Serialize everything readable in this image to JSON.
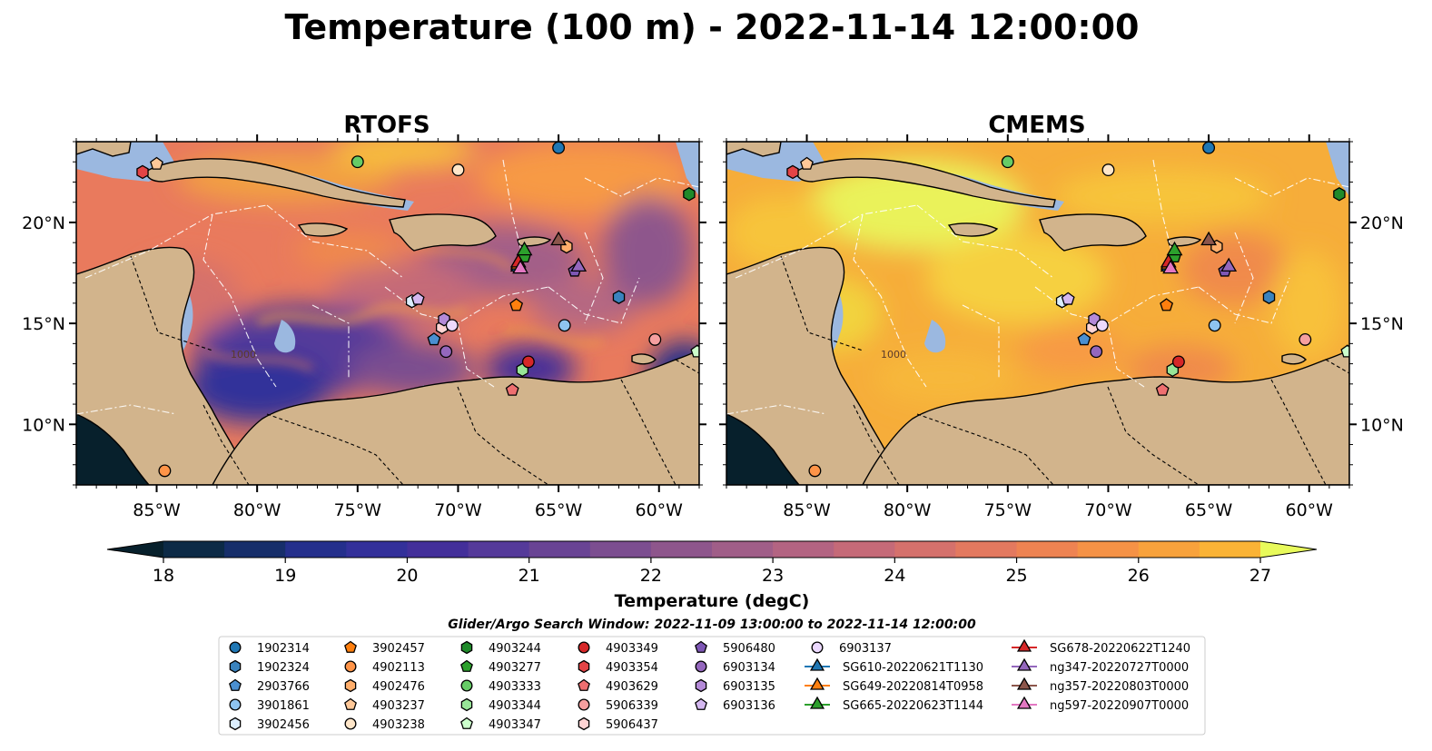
{
  "figure": {
    "title": "Temperature (100 m) - 2022-11-14 12:00:00",
    "search_window": "Glider/Argo Search Window: 2022-11-09 13:00:00 to 2022-11-14 12:00:00"
  },
  "panels": [
    {
      "name": "rtofs",
      "title": "RTOFS"
    },
    {
      "name": "cmems",
      "title": "CMEMS"
    }
  ],
  "axes": {
    "lon_ticks": [
      "85°W",
      "80°W",
      "75°W",
      "70°W",
      "65°W",
      "60°W"
    ],
    "lat_ticks": [
      "20°N",
      "15°N",
      "10°N"
    ],
    "lon_values": [
      -85,
      -80,
      -75,
      -70,
      -65,
      -60
    ],
    "lat_values": [
      20,
      15,
      10
    ],
    "lon_range": [
      -89,
      -58
    ],
    "lat_range": [
      7,
      24
    ],
    "contour_label": "1000"
  },
  "colorbar": {
    "label": "Temperature (degC)",
    "ticks": [
      "18",
      "19",
      "20",
      "21",
      "22",
      "23",
      "24",
      "25",
      "26",
      "27"
    ],
    "range": [
      18,
      27
    ],
    "step": 0.5,
    "extend": "both",
    "colors": [
      "#07202c",
      "#0c2a46",
      "#162e6a",
      "#242f8c",
      "#33309a",
      "#432f9a",
      "#553a9a",
      "#694494",
      "#7c4e90",
      "#8e568c",
      "#a05e88",
      "#b36482",
      "#c56a78",
      "#d5716c",
      "#e3795f",
      "#ee8352",
      "#f59246",
      "#f8a23c",
      "#fab336",
      "#f9c439",
      "#f3d63e",
      "#e8fa5b"
    ]
  },
  "markers": [
    {
      "id": "1902314",
      "shape": "circle",
      "color": "#1f77b4",
      "lon": -65.0,
      "lat": 23.7
    },
    {
      "id": "1902324",
      "shape": "hexagon",
      "color": "#3a83be",
      "lon": -62.0,
      "lat": 16.3
    },
    {
      "id": "2903766",
      "shape": "pentagon",
      "color": "#4a8fd0",
      "lon": -71.2,
      "lat": 14.2
    },
    {
      "id": "3901861",
      "shape": "circle",
      "color": "#8ec3f0",
      "lon": -64.7,
      "lat": 14.9
    },
    {
      "id": "3902456",
      "shape": "hexagon",
      "color": "#dbeeff",
      "lon": -72.3,
      "lat": 16.1
    },
    {
      "id": "3902457",
      "shape": "pentagon",
      "color": "#ff7f0e",
      "lon": -67.1,
      "lat": 15.9
    },
    {
      "id": "4902113",
      "shape": "circle",
      "color": "#ff9448",
      "lon": -84.6,
      "lat": 7.7
    },
    {
      "id": "4902476",
      "shape": "hexagon",
      "color": "#ffae6b",
      "lon": -64.6,
      "lat": 18.8
    },
    {
      "id": "4903237",
      "shape": "pentagon",
      "color": "#ffc898",
      "lon": -85.0,
      "lat": 22.9
    },
    {
      "id": "4903238",
      "shape": "circle",
      "color": "#ffe6c9",
      "lon": -70.0,
      "lat": 22.6
    },
    {
      "id": "4903244",
      "shape": "hexagon",
      "color": "#1f8a2a",
      "lon": -58.5,
      "lat": 21.4
    },
    {
      "id": "4903277",
      "shape": "pentagon",
      "color": "#2ca02c",
      "lon": -66.7,
      "lat": 18.3
    },
    {
      "id": "4903333",
      "shape": "circle",
      "color": "#66cc66",
      "lon": -75.0,
      "lat": 23.0
    },
    {
      "id": "4903344",
      "shape": "hexagon",
      "color": "#98e598",
      "lon": -66.8,
      "lat": 12.7
    },
    {
      "id": "4903347",
      "shape": "pentagon",
      "color": "#ccffcc",
      "lon": -58.1,
      "lat": 13.6
    },
    {
      "id": "4903349",
      "shape": "circle",
      "color": "#d62728",
      "lon": -66.5,
      "lat": 13.1
    },
    {
      "id": "4903354",
      "shape": "hexagon",
      "color": "#e34446",
      "lon": -85.7,
      "lat": 22.5
    },
    {
      "id": "4903629",
      "shape": "pentagon",
      "color": "#ee6f70",
      "lon": -67.3,
      "lat": 11.7
    },
    {
      "id": "5906339",
      "shape": "circle",
      "color": "#f59f9f",
      "lon": -60.2,
      "lat": 14.2
    },
    {
      "id": "5906437",
      "shape": "hexagon",
      "color": "#ffd4d4",
      "lon": -70.8,
      "lat": 14.8
    },
    {
      "id": "5906480",
      "shape": "pentagon",
      "color": "#7e57b5",
      "lon": -64.2,
      "lat": 17.6
    },
    {
      "id": "6903134",
      "shape": "circle",
      "color": "#9467bd",
      "lon": -70.6,
      "lat": 13.6
    },
    {
      "id": "6903135",
      "shape": "hexagon",
      "color": "#b48ad8",
      "lon": -70.7,
      "lat": 15.2
    },
    {
      "id": "6903136",
      "shape": "pentagon",
      "color": "#d4b8f0",
      "lon": -72.0,
      "lat": 16.2
    },
    {
      "id": "6903137",
      "shape": "circle",
      "color": "#ecd9ff",
      "lon": -70.3,
      "lat": 14.9
    },
    {
      "id": "SG610-20220621T1130",
      "shape": "triangle",
      "color": "#1f77b4",
      "lon": -67.0,
      "lat": 17.8,
      "line": true
    },
    {
      "id": "SG649-20220814T0958",
      "shape": "triangle",
      "color": "#ff7f0e",
      "lon": -67.0,
      "lat": 17.9,
      "line": true
    },
    {
      "id": "SG665-20220623T1144",
      "shape": "triangle",
      "color": "#2ca02c",
      "lon": -66.7,
      "lat": 18.6,
      "line": true
    },
    {
      "id": "SG678-20220622T1240",
      "shape": "triangle",
      "color": "#d62728",
      "lon": -67.0,
      "lat": 18.0,
      "line": true
    },
    {
      "id": "ng347-20220727T0000",
      "shape": "triangle",
      "color": "#9467bd",
      "lon": -64.0,
      "lat": 17.8,
      "line": true
    },
    {
      "id": "ng357-20220803T0000",
      "shape": "triangle",
      "color": "#8c564b",
      "lon": -65.0,
      "lat": 19.1,
      "line": true
    },
    {
      "id": "ng597-20220907T0000",
      "shape": "triangle",
      "color": "#e377c2",
      "lon": -66.9,
      "lat": 17.7,
      "line": true
    }
  ],
  "palette": {
    "land": "#d2b48c",
    "shelf": "#9bb8e0",
    "deep_pacific": "#07202c",
    "coast": "#000000"
  }
}
